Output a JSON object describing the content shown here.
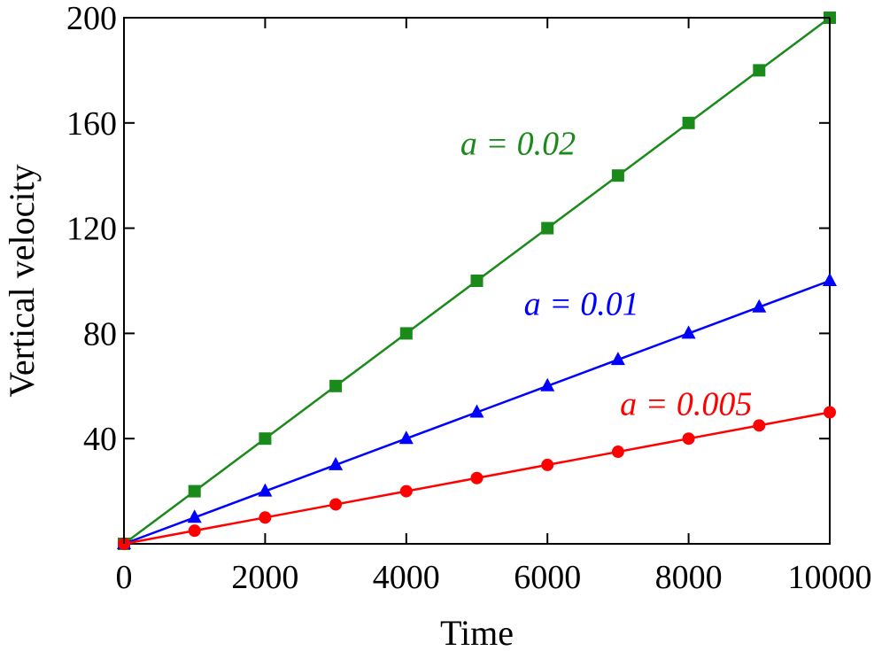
{
  "chart_data": {
    "type": "line",
    "title": "",
    "xlabel": "Time",
    "ylabel": "Vertical velocity",
    "xlim": [
      0,
      10000
    ],
    "ylim": [
      0,
      200
    ],
    "xticks": [
      0,
      2000,
      4000,
      6000,
      8000,
      10000
    ],
    "yticks": [
      40,
      80,
      120,
      160,
      200
    ],
    "grid": false,
    "legend": "none",
    "x": [
      0,
      1000,
      2000,
      3000,
      4000,
      5000,
      6000,
      7000,
      8000,
      9000,
      10000
    ],
    "series": [
      {
        "label": "a = 0.02",
        "color": "#1a8a1a",
        "marker": "square",
        "values": [
          0,
          20,
          40,
          60,
          80,
          100,
          120,
          140,
          160,
          180,
          200
        ],
        "label_at": [
          6400,
          148
        ]
      },
      {
        "label": "a = 0.01",
        "color": "#0000ff",
        "marker": "triangle",
        "values": [
          0,
          10,
          20,
          30,
          40,
          50,
          60,
          70,
          80,
          90,
          100
        ],
        "label_at": [
          7300,
          87
        ]
      },
      {
        "label": "a = 0.005",
        "color": "#ff0000",
        "marker": "circle",
        "values": [
          0,
          5,
          10,
          15,
          20,
          25,
          30,
          35,
          40,
          45,
          50
        ],
        "label_at": [
          8900,
          49
        ]
      }
    ]
  }
}
